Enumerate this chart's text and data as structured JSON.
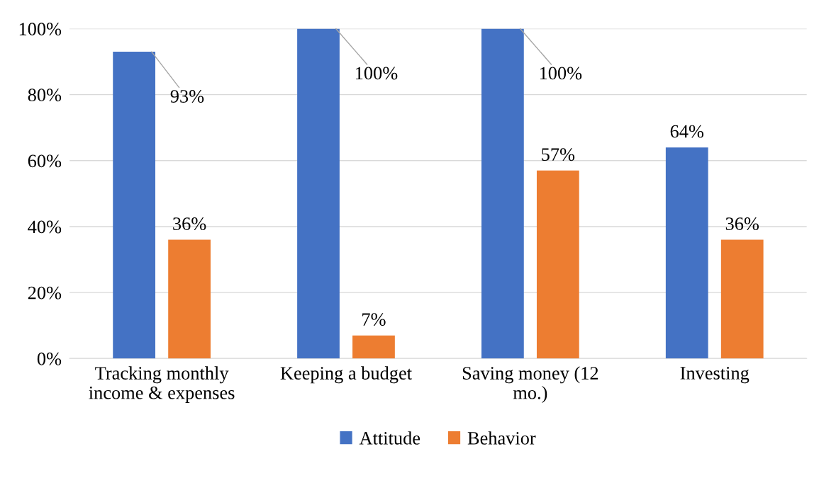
{
  "chart_data": {
    "type": "bar",
    "categories": [
      "Tracking monthly\nincome & expenses",
      "Keeping a budget",
      "Saving money (12\nmo.)",
      "Investing"
    ],
    "series": [
      {
        "name": "Attitude",
        "color": "#4472c4",
        "values": [
          93,
          100,
          100,
          64
        ],
        "value_labels": [
          "93%",
          "100%",
          "100%",
          "64%"
        ]
      },
      {
        "name": "Behavior",
        "color": "#ed7d31",
        "values": [
          36,
          7,
          57,
          36
        ],
        "value_labels": [
          "36%",
          "7%",
          "57%",
          "36%"
        ]
      }
    ],
    "ylim": [
      0,
      100
    ],
    "yticks": [
      {
        "value": 0,
        "label": "0%"
      },
      {
        "value": 20,
        "label": "20%"
      },
      {
        "value": 40,
        "label": "40%"
      },
      {
        "value": 60,
        "label": "60%"
      },
      {
        "value": 80,
        "label": "80%"
      },
      {
        "value": 100,
        "label": "100%"
      }
    ],
    "grid": "y",
    "legend": "bottom"
  }
}
